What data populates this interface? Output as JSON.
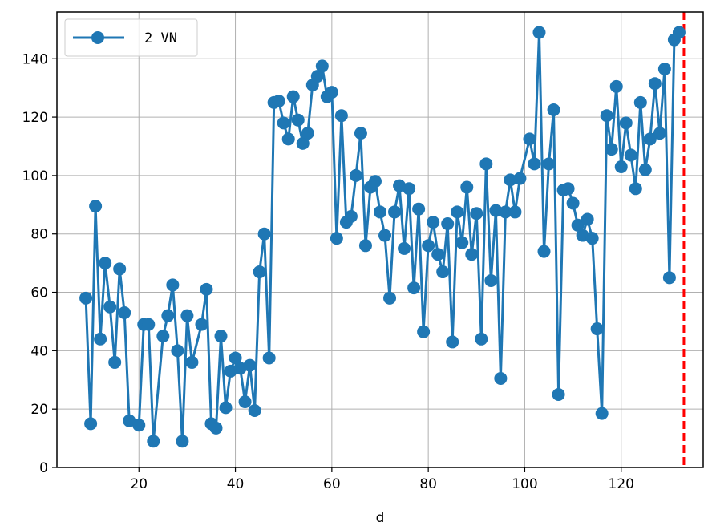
{
  "chart_data": {
    "type": "line",
    "title": "",
    "xlabel": "d",
    "ylabel": "",
    "xlim": [
      3,
      137
    ],
    "ylim": [
      0,
      156
    ],
    "grid": true,
    "legend_placement": "top-left",
    "x_ticks": [
      20,
      40,
      60,
      80,
      100,
      120
    ],
    "y_ticks": [
      0,
      20,
      40,
      60,
      80,
      100,
      120,
      140
    ],
    "series": [
      {
        "name": "2 VN",
        "color": "#1f77b4",
        "marker": "circle",
        "x": [
          9,
          10,
          11,
          12,
          13,
          14,
          15,
          16,
          17,
          18,
          20,
          21,
          22,
          23,
          25,
          26,
          27,
          28,
          29,
          30,
          31,
          33,
          34,
          35,
          36,
          37,
          38,
          39,
          40,
          41,
          42,
          43,
          44,
          45,
          46,
          47,
          48,
          49,
          50,
          51,
          52,
          53,
          54,
          55,
          56,
          57,
          58,
          59,
          60,
          61,
          62,
          63,
          64,
          65,
          66,
          67,
          68,
          69,
          70,
          71,
          72,
          73,
          74,
          75,
          76,
          77,
          78,
          79,
          80,
          81,
          82,
          83,
          84,
          85,
          86,
          87,
          88,
          89,
          90,
          91,
          92,
          93,
          94,
          95,
          96,
          97,
          98,
          99,
          101,
          102,
          103,
          104,
          105,
          106,
          107,
          108,
          109,
          110,
          111,
          112,
          113,
          114,
          115,
          116,
          117,
          118,
          119,
          120,
          121,
          122,
          123,
          124,
          125,
          126,
          127,
          128,
          129,
          130,
          131,
          132
        ],
        "values": [
          58,
          15,
          89.5,
          44,
          70,
          55,
          36,
          68,
          53,
          16,
          14.5,
          49,
          49,
          9,
          45,
          52,
          62.5,
          40,
          9,
          52,
          36,
          49,
          61,
          15,
          13.5,
          45,
          20.5,
          33,
          37.5,
          34,
          22.5,
          35,
          19.5,
          67,
          80,
          37.5,
          125,
          125.5,
          118,
          112.5,
          127,
          119,
          111,
          114.5,
          131,
          134,
          137.5,
          127,
          128.5,
          78.5,
          120.5,
          84,
          86,
          100,
          114.5,
          76,
          96,
          98,
          87.5,
          79.5,
          58,
          87.5,
          96.5,
          75,
          95.5,
          61.5,
          88.5,
          46.5,
          76,
          84,
          73,
          67,
          83.5,
          43,
          87.5,
          77,
          96,
          73,
          87,
          44,
          104,
          64,
          88,
          30.5,
          87.5,
          98.5,
          87.5,
          99,
          112.5,
          104,
          149,
          74,
          104,
          122.5,
          25,
          95,
          95.5,
          90.5,
          83,
          79.5,
          85,
          78.5,
          47.5,
          18.5,
          120.5,
          109,
          130.5,
          103,
          118,
          107,
          95.5,
          125,
          102,
          112.5,
          131.5,
          114.5,
          136.5,
          65,
          146.5,
          149
        ]
      }
    ],
    "reference_lines": [
      {
        "orientation": "vertical",
        "x": 133,
        "color": "#ff0000",
        "style": "dashed"
      }
    ]
  }
}
